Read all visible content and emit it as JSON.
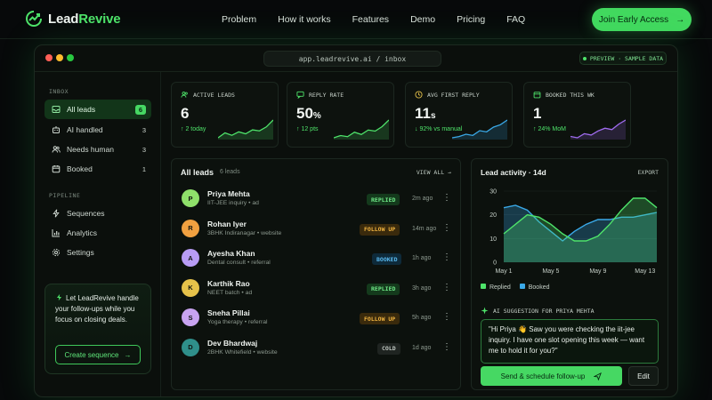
{
  "brand": {
    "name_prefix": "Lead",
    "name_suffix": "Revive"
  },
  "nav": {
    "links": [
      "Problem",
      "How it works",
      "Features",
      "Demo",
      "Pricing",
      "FAQ"
    ],
    "cta": "Join Early Access",
    "cta_arrow": "→"
  },
  "window": {
    "url": "app.leadrevive.ai / inbox",
    "badge": "PREVIEW · SAMPLE DATA"
  },
  "sidebar": {
    "inbox_label": "INBOX",
    "inbox_items": [
      {
        "label": "All leads",
        "count": "6",
        "icon": "inbox-icon"
      },
      {
        "label": "AI handled",
        "count": "3",
        "icon": "robot-icon"
      },
      {
        "label": "Needs human",
        "count": "3",
        "icon": "users-icon"
      },
      {
        "label": "Booked",
        "count": "1",
        "icon": "calendar-icon"
      }
    ],
    "pipeline_label": "PIPELINE",
    "pipeline_items": [
      {
        "label": "Sequences",
        "icon": "bolt-icon"
      },
      {
        "label": "Analytics",
        "icon": "chart-icon"
      },
      {
        "label": "Settings",
        "icon": "gear-icon"
      }
    ],
    "promo_text": "Let LeadRevive handle your follow-ups while you focus on closing deals.",
    "promo_button": "Create sequence",
    "promo_arrow": "→"
  },
  "stats": [
    {
      "label": "ACTIVE LEADS",
      "value": "6",
      "unit": "",
      "sub": "↑ 2 today",
      "color": "#4ee36a",
      "icon": "users-icon",
      "spark": [
        2,
        3,
        2.5,
        3.2,
        2.8,
        3.6,
        3.4,
        4.2,
        5.6
      ]
    },
    {
      "label": "REPLY RATE",
      "value": "50",
      "unit": "%",
      "sub": "↑ 12 pts",
      "color": "#4ee36a",
      "icon": "reply-icon",
      "spark": [
        2,
        2.4,
        2.2,
        3,
        2.6,
        3.4,
        3.2,
        4,
        5.2
      ]
    },
    {
      "label": "AVG FIRST REPLY",
      "value": "11",
      "unit": "s",
      "sub": "↓ 92% vs manual",
      "color": "#3aa9e8",
      "icon": "clock-icon",
      "spark": [
        2,
        2.2,
        2.6,
        2.4,
        3.2,
        3,
        3.8,
        4.2,
        5
      ]
    },
    {
      "label": "BOOKED THIS WK",
      "value": "1",
      "unit": "",
      "sub": "↑ 24% MoM",
      "color": "#a06cf0",
      "icon": "calendar-icon",
      "spark": [
        2.4,
        2.2,
        2.8,
        2.6,
        3.2,
        3.6,
        3.4,
        4.2,
        4.8
      ]
    }
  ],
  "leads": {
    "title": "All leads",
    "count": "6 leads",
    "view_all": "VIEW ALL →",
    "rows": [
      {
        "initial": "P",
        "name": "Priya Mehta",
        "desc": "IIT-JEE inquiry • ad",
        "status": "REPLIED",
        "time": "2m ago",
        "avatar": "#8fe06a"
      },
      {
        "initial": "R",
        "name": "Rohan Iyer",
        "desc": "3BHK Indiranagar • website",
        "status": "FOLLOW UP",
        "time": "14m ago",
        "avatar": "#f0a040"
      },
      {
        "initial": "A",
        "name": "Ayesha Khan",
        "desc": "Dental consult • referral",
        "status": "BOOKED",
        "time": "1h ago",
        "avatar": "#b89cf5"
      },
      {
        "initial": "K",
        "name": "Karthik Rao",
        "desc": "NEET batch • ad",
        "status": "REPLIED",
        "time": "3h ago",
        "avatar": "#e6c24a"
      },
      {
        "initial": "S",
        "name": "Sneha Pillai",
        "desc": "Yoga therapy • referral",
        "status": "FOLLOW UP",
        "time": "5h ago",
        "avatar": "#c8a3f0"
      },
      {
        "initial": "D",
        "name": "Dev Bhardwaj",
        "desc": "2BHK Whitefield • website",
        "status": "COLD",
        "time": "1d ago",
        "avatar": "#2f8f8a"
      }
    ]
  },
  "activity": {
    "title": "Lead activity · 14d",
    "export": "EXPORT",
    "ai_label": "AI SUGGESTION FOR PRIYA MEHTA",
    "ai_message": "\"Hi Priya 👋 Saw you were checking the iit-jee inquiry. I have one slot opening this week — want me to hold it for you?\"",
    "send_button": "Send & schedule follow-up",
    "edit_button": "Edit"
  },
  "chart_data": {
    "type": "area",
    "x": [
      "May 1",
      "May 2",
      "May 3",
      "May 4",
      "May 5",
      "May 6",
      "May 7",
      "May 8",
      "May 9",
      "May 10",
      "May 11",
      "May 12",
      "May 13",
      "May 14"
    ],
    "x_tick_labels": [
      "May 1",
      "May 5",
      "May 9",
      "May 13"
    ],
    "y_ticks": [
      "0",
      "10",
      "20",
      "30"
    ],
    "ylim": [
      0,
      30
    ],
    "series": [
      {
        "name": "Replied",
        "color": "#4ee36a",
        "values": [
          12,
          16,
          20,
          19,
          16,
          12,
          9,
          9,
          11,
          16,
          22,
          27,
          27,
          23
        ]
      },
      {
        "name": "Booked",
        "color": "#3aa9e8",
        "values": [
          23,
          24,
          22,
          17,
          13,
          9,
          13,
          16,
          18,
          18,
          19,
          19,
          20,
          21
        ]
      }
    ],
    "legend": "bottom-left"
  }
}
